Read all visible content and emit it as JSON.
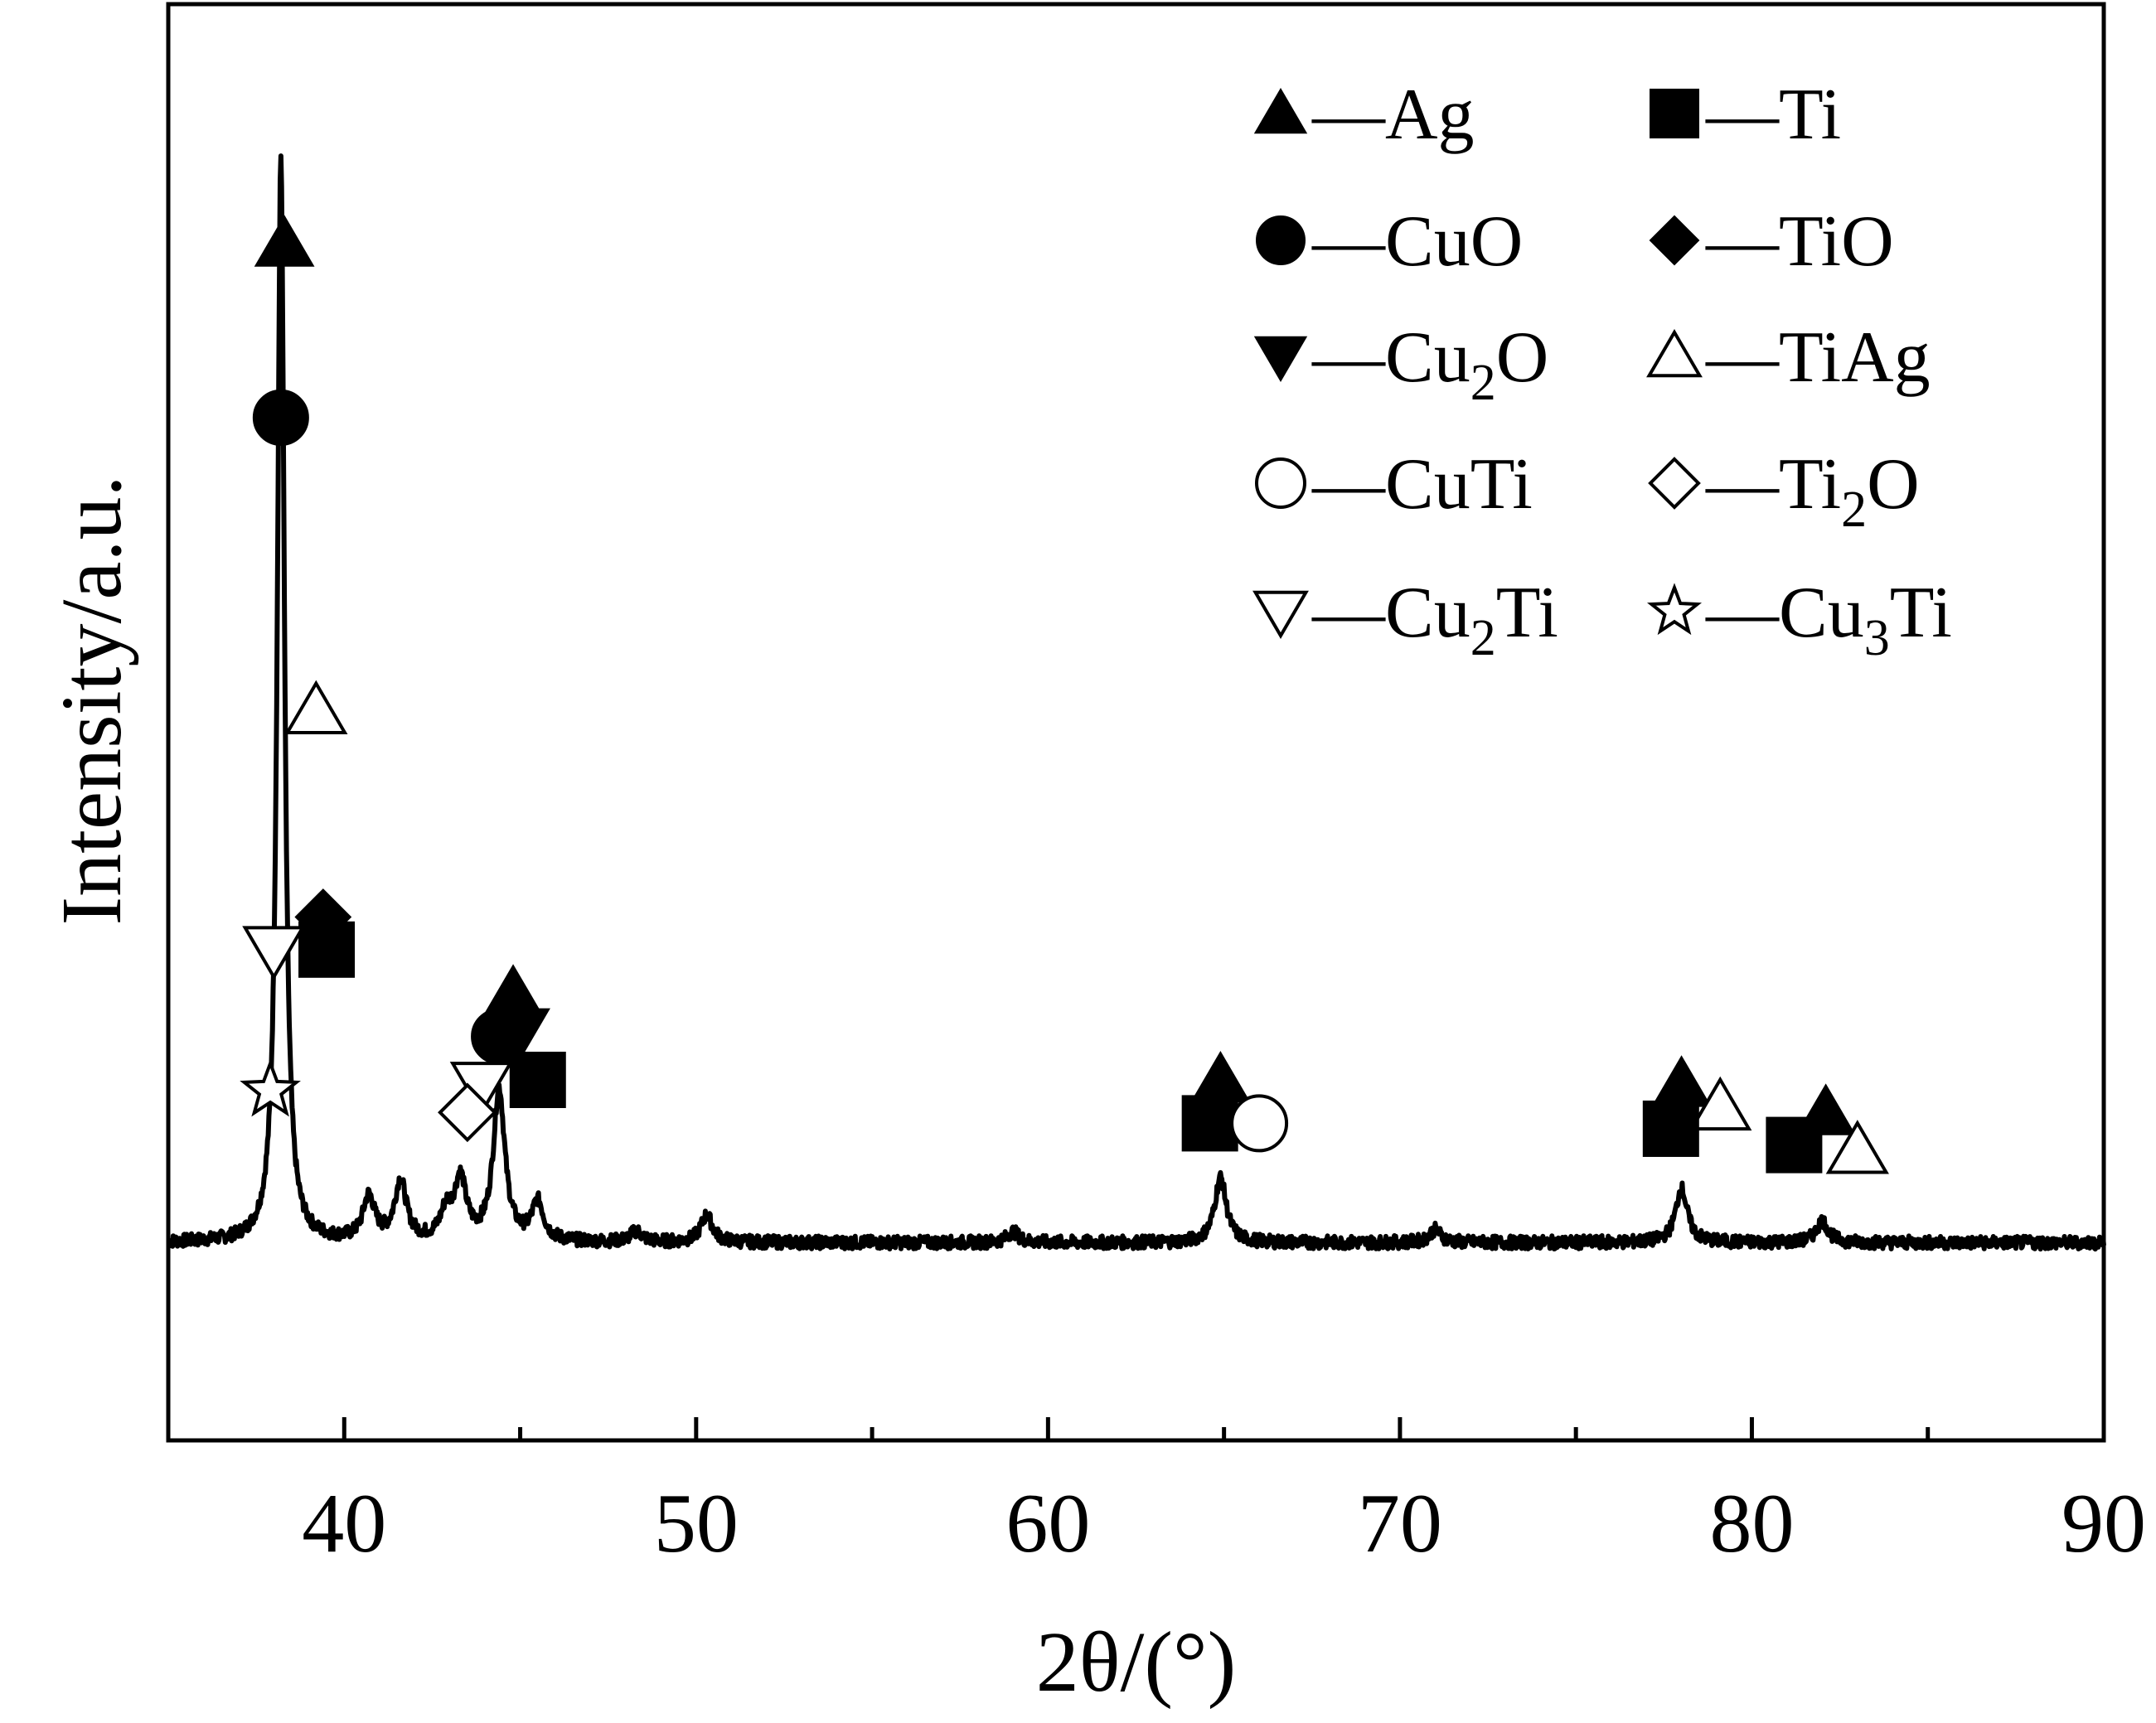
{
  "chart_data": {
    "type": "line",
    "xlabel": "2θ/(°)",
    "ylabel": "Intensity/a.u.",
    "xlim": [
      35,
      90
    ],
    "x_ticks": [
      "40",
      "50",
      "60",
      "70",
      "80",
      "90"
    ],
    "y_ticks_labeled": false,
    "grid": false,
    "legend_position": "top-right",
    "series": [
      {
        "color": "#000000",
        "baseline": 0.05,
        "noise_amplitude": 0.006,
        "peaks": [
          {
            "x": 38.2,
            "height": 1.0
          },
          {
            "x": 40.7,
            "height": 0.04
          },
          {
            "x": 41.6,
            "height": 0.055
          },
          {
            "x": 42.9,
            "height": 0.025
          },
          {
            "x": 43.3,
            "height": 0.055
          },
          {
            "x": 44.4,
            "height": 0.14
          },
          {
            "x": 45.5,
            "height": 0.035
          },
          {
            "x": 48.3,
            "height": 0.01
          },
          {
            "x": 50.3,
            "height": 0.025
          },
          {
            "x": 59.0,
            "height": 0.01
          },
          {
            "x": 64.9,
            "height": 0.06
          },
          {
            "x": 71.0,
            "height": 0.012
          },
          {
            "x": 78.0,
            "height": 0.05
          },
          {
            "x": 82.0,
            "height": 0.02
          }
        ]
      }
    ],
    "phases": [
      {
        "id": "Ag",
        "label": "—Ag",
        "marker": "triangle-up-filled"
      },
      {
        "id": "Ti",
        "label": "—Ti",
        "marker": "square-filled"
      },
      {
        "id": "CuO",
        "label": "—CuO",
        "marker": "circle-filled"
      },
      {
        "id": "TiO",
        "label": "—TiO",
        "marker": "diamond-filled"
      },
      {
        "id": "Cu2O",
        "label": "—Cu",
        "sub": "2",
        "tail": "O",
        "marker": "triangle-down-filled"
      },
      {
        "id": "TiAg",
        "label": "—TiAg",
        "marker": "triangle-up-open"
      },
      {
        "id": "CuTi",
        "label": "—CuTi",
        "marker": "circle-open"
      },
      {
        "id": "Ti2O",
        "label": "—Ti",
        "sub": "2",
        "tail": "O",
        "marker": "diamond-open"
      },
      {
        "id": "Cu2Ti",
        "label": "—Cu",
        "sub": "2",
        "tail": "Ti",
        "marker": "triangle-down-open"
      },
      {
        "id": "Cu3Ti",
        "label": "—Cu",
        "sub": "3",
        "tail": "Ti",
        "marker": "star-open"
      }
    ],
    "peak_markers": [
      {
        "phase": "Ag",
        "x": 38.3,
        "y": 0.97
      },
      {
        "phase": "CuO",
        "x": 38.2,
        "y": 0.81
      },
      {
        "phase": "TiAg",
        "x": 39.2,
        "y": 0.54
      },
      {
        "phase": "TiO",
        "x": 39.4,
        "y": 0.35
      },
      {
        "phase": "Ti",
        "x": 39.5,
        "y": 0.32
      },
      {
        "phase": "Cu2Ti",
        "x": 38.0,
        "y": 0.32
      },
      {
        "phase": "Cu3Ti",
        "x": 37.9,
        "y": 0.19
      },
      {
        "phase": "Ag",
        "x": 44.8,
        "y": 0.28
      },
      {
        "phase": "Cu2O",
        "x": 45.0,
        "y": 0.245
      },
      {
        "phase": "CuO",
        "x": 44.4,
        "y": 0.24
      },
      {
        "phase": "Ti",
        "x": 45.5,
        "y": 0.2
      },
      {
        "phase": "Cu2Ti",
        "x": 43.9,
        "y": 0.195
      },
      {
        "phase": "Ti2O",
        "x": 43.5,
        "y": 0.17
      },
      {
        "phase": "Ag",
        "x": 64.9,
        "y": 0.2
      },
      {
        "phase": "Ti",
        "x": 64.6,
        "y": 0.16
      },
      {
        "phase": "CuTi",
        "x": 66.0,
        "y": 0.16
      },
      {
        "phase": "Ag",
        "x": 78.0,
        "y": 0.196
      },
      {
        "phase": "TiAg",
        "x": 79.1,
        "y": 0.175
      },
      {
        "phase": "Ti",
        "x": 77.7,
        "y": 0.155
      },
      {
        "phase": "Ag",
        "x": 82.1,
        "y": 0.17
      },
      {
        "phase": "TiAg",
        "x": 83.0,
        "y": 0.135
      },
      {
        "phase": "Ti",
        "x": 81.2,
        "y": 0.14
      }
    ]
  }
}
